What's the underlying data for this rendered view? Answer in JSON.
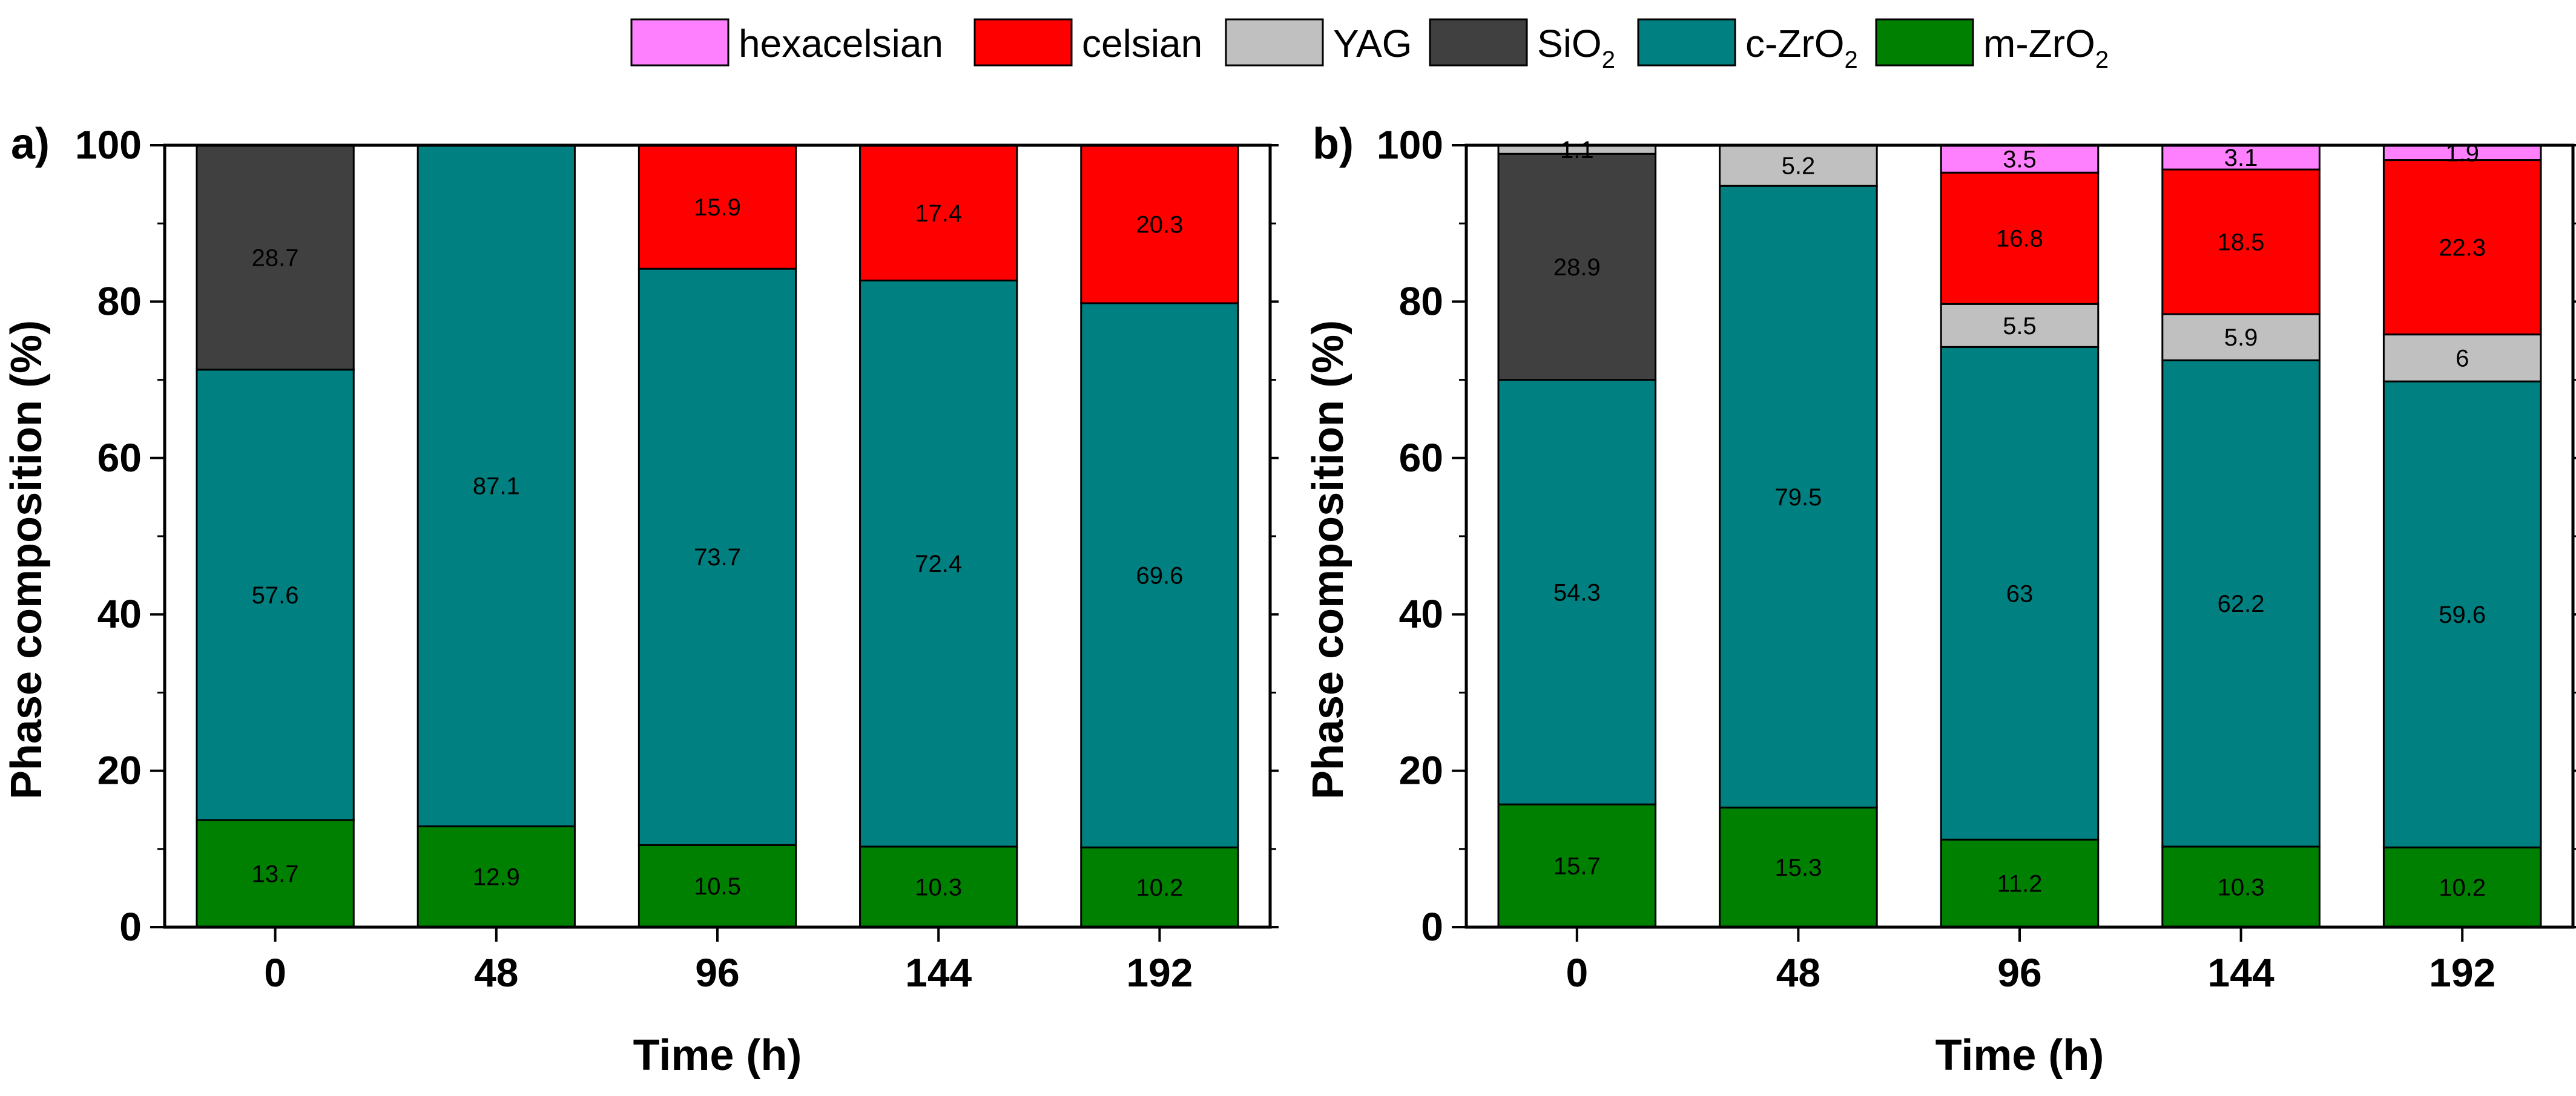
{
  "legend": [
    {
      "key": "hexacelsian",
      "text": "hexacelsian",
      "sub": "",
      "color": "#ff80ff"
    },
    {
      "key": "celsian",
      "text": "celsian",
      "sub": "",
      "color": "#ff0000"
    },
    {
      "key": "yag",
      "text": "YAG",
      "sub": "",
      "color": "#c0c0c0"
    },
    {
      "key": "sio2",
      "text": "SiO",
      "sub": "2",
      "color": "#404040"
    },
    {
      "key": "czro2",
      "text": "c-ZrO",
      "sub": "2",
      "color": "#008080"
    },
    {
      "key": "mzro2",
      "text": "m-ZrO",
      "sub": "2",
      "color": "#008000"
    }
  ],
  "chart_data": [
    {
      "type": "bar",
      "stacked": true,
      "panel_label": "a)",
      "xlabel": "Time (h)",
      "ylabel": "Phase composition (%)",
      "ylim": [
        0,
        100
      ],
      "y_ticks": [
        0,
        20,
        40,
        60,
        80,
        100
      ],
      "categories": [
        "0",
        "48",
        "96",
        "144",
        "192"
      ],
      "series": [
        {
          "name": "m-ZrO2",
          "color": "#008000",
          "values": [
            13.7,
            12.9,
            10.5,
            10.3,
            10.2
          ],
          "labels": [
            "13.7",
            "12.9",
            "10.5",
            "10.3",
            "10.2"
          ]
        },
        {
          "name": "c-ZrO2",
          "color": "#008080",
          "values": [
            57.6,
            87.1,
            73.7,
            72.4,
            69.6
          ],
          "labels": [
            "57.6",
            "87.1",
            "73.7",
            "72.4",
            "69.6"
          ]
        },
        {
          "name": "SiO2",
          "color": "#404040",
          "values": [
            28.7,
            0,
            0,
            0,
            0
          ],
          "labels": [
            "28.7",
            "",
            "",
            "",
            ""
          ]
        },
        {
          "name": "YAG",
          "color": "#c0c0c0",
          "values": [
            0,
            0,
            0,
            0,
            0
          ],
          "labels": [
            "",
            "",
            "",
            "",
            ""
          ]
        },
        {
          "name": "celsian",
          "color": "#ff0000",
          "values": [
            0,
            0,
            15.9,
            17.4,
            20.3
          ],
          "labels": [
            "",
            "",
            "15.9",
            "17.4",
            "20.3"
          ]
        },
        {
          "name": "hexacelsian",
          "color": "#ff80ff",
          "values": [
            0,
            0,
            0,
            0,
            0
          ],
          "labels": [
            "",
            "",
            "",
            "",
            ""
          ]
        }
      ]
    },
    {
      "type": "bar",
      "stacked": true,
      "panel_label": "b)",
      "xlabel": "Time (h)",
      "ylabel": "Phase composition (%)",
      "ylim": [
        0,
        100
      ],
      "y_ticks": [
        0,
        20,
        40,
        60,
        80,
        100
      ],
      "categories": [
        "0",
        "48",
        "96",
        "144",
        "192"
      ],
      "series": [
        {
          "name": "m-ZrO2",
          "color": "#008000",
          "values": [
            15.7,
            15.3,
            11.2,
            10.3,
            10.2
          ],
          "labels": [
            "15.7",
            "15.3",
            "11.2",
            "10.3",
            "10.2"
          ]
        },
        {
          "name": "c-ZrO2",
          "color": "#008080",
          "values": [
            54.3,
            79.5,
            63,
            62.2,
            59.6
          ],
          "labels": [
            "54.3",
            "79.5",
            "63",
            "62.2",
            "59.6"
          ]
        },
        {
          "name": "SiO2",
          "color": "#404040",
          "values": [
            28.9,
            0,
            0,
            0,
            0
          ],
          "labels": [
            "28.9",
            "",
            "",
            "",
            ""
          ]
        },
        {
          "name": "YAG",
          "color": "#c0c0c0",
          "values": [
            1.1,
            5.2,
            5.5,
            5.9,
            6
          ],
          "labels": [
            "1.1",
            "5.2",
            "5.5",
            "5.9",
            "6"
          ]
        },
        {
          "name": "celsian",
          "color": "#ff0000",
          "values": [
            0,
            0,
            16.8,
            18.5,
            22.3
          ],
          "labels": [
            "",
            "",
            "16.8",
            "18.5",
            "22.3"
          ]
        },
        {
          "name": "hexacelsian",
          "color": "#ff80ff",
          "values": [
            0,
            0,
            3.5,
            3.1,
            1.9
          ],
          "labels": [
            "",
            "",
            "3.5",
            "3.1",
            "1.9"
          ]
        }
      ]
    }
  ]
}
